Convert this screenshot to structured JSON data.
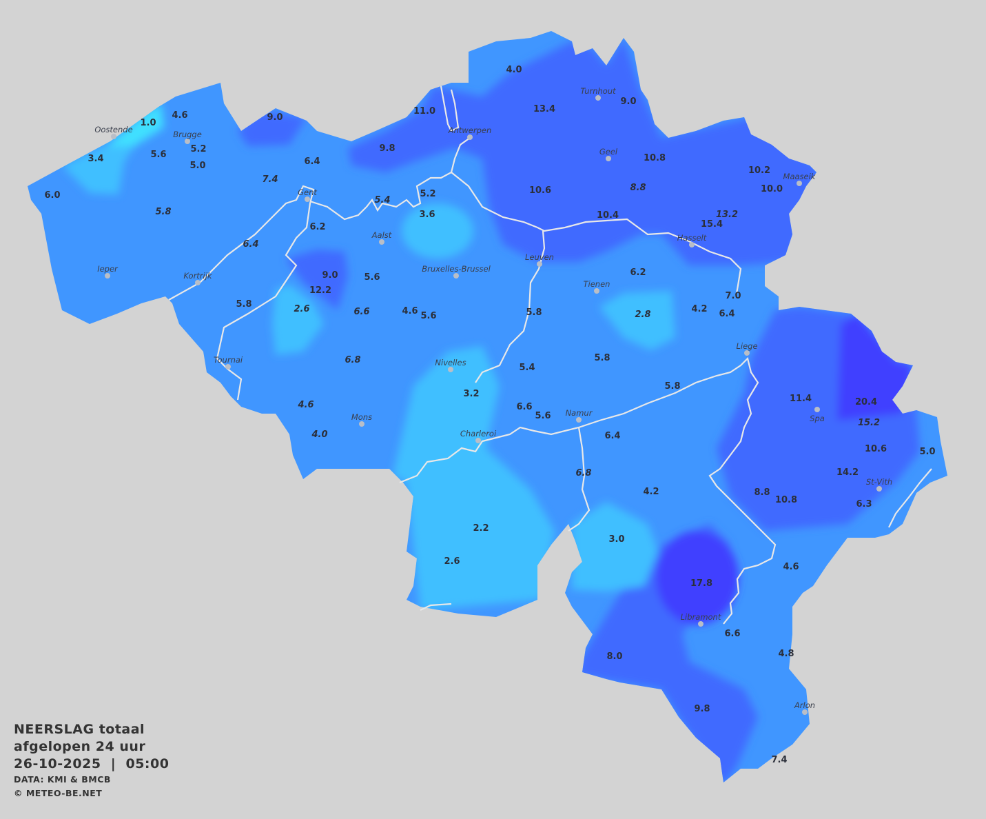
{
  "legend": {
    "title_line1": "NEERSLAG totaal",
    "title_line2": "afgelopen 24 uur",
    "date": "26-10-2025",
    "separator": "|",
    "time": "05:00",
    "source": "DATA: KMI & BMCB",
    "copyright": "© METEO-BE.NET"
  },
  "colors": {
    "background": "#d3d3d3",
    "class_very_low": "#40e0ff",
    "class_low": "#40bfff",
    "class_mid": "#4096ff",
    "class_high": "#416aff",
    "class_very_high": "#4040ff",
    "river": "#e8e8e8"
  },
  "cities": [
    "Oostende",
    "Brugge",
    "Gent",
    "Ieper",
    "Kortrijk",
    "Aalst",
    "Antwerpen",
    "Turnhout",
    "Geel",
    "Maaseik",
    "Hasselt",
    "Leuven",
    "Bruxelles-Brussel",
    "Tienen",
    "Liege",
    "Tournai",
    "Nivelles",
    "Mons",
    "Namur",
    "Charleroi",
    "Spa",
    "St-Vith",
    "Libramont",
    "Arlon"
  ],
  "stations": [
    {
      "v": "1.0"
    },
    {
      "v": "4.6"
    },
    {
      "v": "5.2"
    },
    {
      "v": "3.4"
    },
    {
      "v": "5.6"
    },
    {
      "v": "5.0"
    },
    {
      "v": "6.0"
    },
    {
      "v": "5.8",
      "italic": true
    },
    {
      "v": "9.0"
    },
    {
      "v": "6.4"
    },
    {
      "v": "7.4",
      "italic": true
    },
    {
      "v": "6.2"
    },
    {
      "v": "6.4",
      "italic": true
    },
    {
      "v": "9.0"
    },
    {
      "v": "12.2"
    },
    {
      "v": "5.8"
    },
    {
      "v": "2.6",
      "italic": true
    },
    {
      "v": "5.6"
    },
    {
      "v": "6.6",
      "italic": true
    },
    {
      "v": "4.6"
    },
    {
      "v": "5.6"
    },
    {
      "v": "6.8",
      "italic": true
    },
    {
      "v": "4.6",
      "italic": true
    },
    {
      "v": "4.0",
      "italic": true
    },
    {
      "v": "11.0"
    },
    {
      "v": "9.8"
    },
    {
      "v": "4.0"
    },
    {
      "v": "13.4"
    },
    {
      "v": "9.0"
    },
    {
      "v": "10.8"
    },
    {
      "v": "10.6"
    },
    {
      "v": "8.8",
      "italic": true
    },
    {
      "v": "10.2"
    },
    {
      "v": "10.0"
    },
    {
      "v": "5.2"
    },
    {
      "v": "5.4",
      "italic": true
    },
    {
      "v": "3.6"
    },
    {
      "v": "10.4"
    },
    {
      "v": "13.2",
      "italic": true
    },
    {
      "v": "15.4"
    },
    {
      "v": "6.2"
    },
    {
      "v": "7.0"
    },
    {
      "v": "4.2"
    },
    {
      "v": "6.4"
    },
    {
      "v": "2.8",
      "italic": true
    },
    {
      "v": "5.8"
    },
    {
      "v": "5.4"
    },
    {
      "v": "5.8"
    },
    {
      "v": "3.2"
    },
    {
      "v": "6.6"
    },
    {
      "v": "5.6"
    },
    {
      "v": "5.8"
    },
    {
      "v": "6.4"
    },
    {
      "v": "6.8",
      "italic": true
    },
    {
      "v": "4.2"
    },
    {
      "v": "11.4"
    },
    {
      "v": "20.4"
    },
    {
      "v": "15.2",
      "italic": true
    },
    {
      "v": "10.6"
    },
    {
      "v": "5.0"
    },
    {
      "v": "14.2"
    },
    {
      "v": "8.8"
    },
    {
      "v": "10.8"
    },
    {
      "v": "6.3"
    },
    {
      "v": "2.2"
    },
    {
      "v": "2.6"
    },
    {
      "v": "3.0"
    },
    {
      "v": "17.8"
    },
    {
      "v": "4.6"
    },
    {
      "v": "6.6"
    },
    {
      "v": "4.8"
    },
    {
      "v": "8.0"
    },
    {
      "v": "9.8"
    },
    {
      "v": "7.4"
    }
  ]
}
